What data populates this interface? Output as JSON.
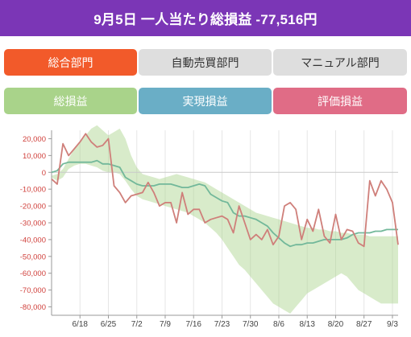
{
  "header": {
    "title": "9月5日 一人当たり総損益 -77,516円"
  },
  "tabs": {
    "sogo": "総合部門",
    "jido": "自動売買部門",
    "manual": "マニュアル部門"
  },
  "metrics": {
    "total": "総損益",
    "jitsugen": "実現損益",
    "hyoka": "評価損益"
  },
  "colors": {
    "header": "#7b36b6",
    "active_tab": "#f25a2a",
    "inactive_tab": "#dedede",
    "total": "#a9d38a",
    "jitsugen": "#6aaec6",
    "hyoka": "#e06c86"
  },
  "chart_data": {
    "type": "line",
    "ylim": [
      -85000,
      25000
    ],
    "yticks": [
      20000,
      10000,
      0,
      -10000,
      -20000,
      -30000,
      -40000,
      -50000,
      -60000,
      -70000,
      -80000
    ],
    "ytick_labels": [
      "20,000",
      "10,000",
      "0",
      "-10,000",
      "-20,000",
      "-30,000",
      "-40,000",
      "-50,000",
      "-60,000",
      "-70,000",
      "-80,000"
    ],
    "xticks": [
      "6/18",
      "6/25",
      "7/2",
      "7/9",
      "7/16",
      "7/23",
      "7/30",
      "8/6",
      "8/13",
      "8/20",
      "8/27",
      "9/3"
    ],
    "xtick_index": [
      5,
      10,
      15,
      20,
      25,
      30,
      35,
      40,
      45,
      50,
      55,
      60
    ],
    "n_points": 62,
    "series": [
      {
        "key": "total_band",
        "upper": [
          -2000,
          -1000,
          2000,
          8000,
          14000,
          18000,
          22000,
          26000,
          28000,
          25000,
          22000,
          24000,
          26000,
          20000,
          10000,
          3000,
          -1000,
          -2000,
          -3000,
          -4000,
          -3000,
          -2000,
          -1000,
          -2000,
          -3000,
          -4000,
          -5000,
          -6000,
          -8000,
          -10000,
          -12000,
          -14000,
          -16000,
          -18000,
          -20000,
          -22000,
          -24000,
          -25000,
          -26000,
          -27000,
          -28000,
          -29000,
          -30000,
          -31000,
          -32000,
          -33000,
          -33000,
          -34000,
          -34000,
          -35000,
          -35000,
          -36000,
          -36000,
          -37000,
          -37000,
          -37000,
          -38000,
          -38000,
          -38000,
          -38000,
          -38000,
          -38000
        ],
        "lower": [
          -3000,
          -5000,
          -3000,
          2000,
          4000,
          5000,
          5000,
          4000,
          3000,
          1000,
          0,
          0,
          -1000,
          -5000,
          -10000,
          -14000,
          -16000,
          -17000,
          -18000,
          -19000,
          -20000,
          -21000,
          -22000,
          -23000,
          -24000,
          -26000,
          -28000,
          -30000,
          -33000,
          -36000,
          -40000,
          -45000,
          -50000,
          -55000,
          -58000,
          -62000,
          -66000,
          -70000,
          -74000,
          -78000,
          -80000,
          -82000,
          -84000,
          -80000,
          -76000,
          -72000,
          -70000,
          -68000,
          -66000,
          -64000,
          -62000,
          -60000,
          -62000,
          -66000,
          -70000,
          -72000,
          -74000,
          -76000,
          -78000,
          -78000,
          -78000,
          -78000
        ]
      },
      {
        "key": "jitsugen",
        "name": "実現損益",
        "values": [
          0,
          1000,
          5000,
          6000,
          6000,
          6000,
          6000,
          6000,
          7000,
          5000,
          5000,
          4000,
          3000,
          -3000,
          -5000,
          -7000,
          -8000,
          -8000,
          -8000,
          -7000,
          -7000,
          -7000,
          -8000,
          -9000,
          -9000,
          -8000,
          -7000,
          -8000,
          -13000,
          -15000,
          -17000,
          -18000,
          -24000,
          -26000,
          -26000,
          -27000,
          -28000,
          -30000,
          -32000,
          -36000,
          -39000,
          -42000,
          -44000,
          -43000,
          -43000,
          -42000,
          -42000,
          -41000,
          -40000,
          -40000,
          -40000,
          -40000,
          -39000,
          -37000,
          -36000,
          -36000,
          -36000,
          -35000,
          -35000,
          -34000,
          -34000,
          -34000
        ]
      },
      {
        "key": "hyoka",
        "name": "評価損益",
        "values": [
          -4000,
          -7000,
          17000,
          10000,
          14000,
          18000,
          23000,
          18000,
          15000,
          16000,
          20000,
          -8000,
          -12000,
          -18000,
          -14000,
          -13000,
          -12000,
          -6000,
          -12000,
          -20000,
          -18000,
          -18000,
          -30000,
          -12000,
          -25000,
          -22000,
          -22000,
          -30000,
          -28000,
          -27000,
          -26000,
          -28000,
          -36000,
          -20000,
          -30000,
          -40000,
          -37000,
          -40000,
          -34000,
          -43000,
          -38000,
          -20000,
          -18000,
          -22000,
          -40000,
          -28000,
          -35000,
          -22000,
          -38000,
          -42000,
          -25000,
          -40000,
          -34000,
          -35000,
          -42000,
          -44000,
          -5000,
          -14000,
          -5000,
          -10000,
          -18000,
          -43000
        ]
      }
    ]
  }
}
